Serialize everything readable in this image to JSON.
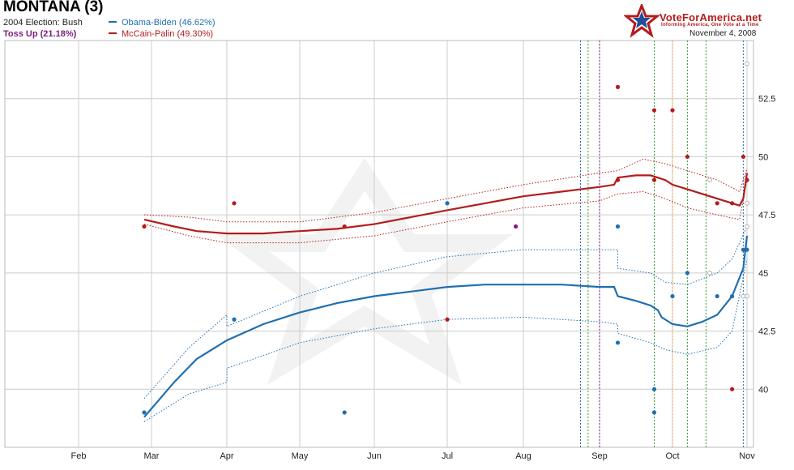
{
  "header": {
    "title": "MONTANA (3)",
    "election_2004": "2004 Election: Bush",
    "status": "Toss Up (21.18%)",
    "brand": "VoteForAmerica.net",
    "tagline": "Informing America, One Vote at a Time",
    "date": "November 4, 2008"
  },
  "colors": {
    "obama": "#1f6fb0",
    "mccain": "#b41c1c",
    "tossup": "#8a1a8a",
    "grid": "#cccccc",
    "orange_line": "#f0a030",
    "green_line": "#2e9a2e"
  },
  "chart_data": {
    "type": "line",
    "x_axis": {
      "labels": [
        "Feb",
        "Mar",
        "Apr",
        "May",
        "Jun",
        "Jul",
        "Aug",
        "Sep",
        "Oct",
        "Nov"
      ]
    },
    "y_axis": {
      "range": [
        37.5,
        55
      ],
      "ticks": [
        40,
        42.5,
        45,
        47.5,
        50,
        52.5
      ]
    },
    "grid": true,
    "legend_position": "top-left",
    "series": [
      {
        "name": "Obama-Biden (46.62%)",
        "color": "#1f6fb0",
        "trend": [
          [
            2.9,
            38.8
          ],
          [
            3.3,
            40.3
          ],
          [
            3.6,
            41.3
          ],
          [
            4.0,
            42.1
          ],
          [
            4.5,
            42.8
          ],
          [
            5.0,
            43.3
          ],
          [
            5.5,
            43.7
          ],
          [
            6.0,
            44.0
          ],
          [
            6.5,
            44.2
          ],
          [
            7.0,
            44.4
          ],
          [
            7.5,
            44.5
          ],
          [
            8.0,
            44.5
          ],
          [
            8.5,
            44.5
          ],
          [
            9.0,
            44.4
          ],
          [
            9.2,
            44.4
          ],
          [
            9.25,
            44.0
          ],
          [
            9.5,
            43.8
          ],
          [
            9.7,
            43.6
          ],
          [
            9.8,
            43.4
          ],
          [
            9.85,
            43.1
          ],
          [
            10.0,
            42.8
          ],
          [
            10.2,
            42.7
          ],
          [
            10.4,
            42.9
          ],
          [
            10.6,
            43.2
          ],
          [
            10.8,
            44.0
          ],
          [
            10.95,
            45.2
          ],
          [
            11.0,
            46.6
          ]
        ],
        "band_upper": [
          [
            2.9,
            39.6
          ],
          [
            3.5,
            41.8
          ],
          [
            4.0,
            43.2
          ],
          [
            4.0,
            42.7
          ],
          [
            5.0,
            44.0
          ],
          [
            6.0,
            45.0
          ],
          [
            7.0,
            45.7
          ],
          [
            8.0,
            46.0
          ],
          [
            9.0,
            46.0
          ],
          [
            9.25,
            46.0
          ],
          [
            9.25,
            45.2
          ],
          [
            9.7,
            45.0
          ],
          [
            9.9,
            44.6
          ],
          [
            10.2,
            44.5
          ],
          [
            10.6,
            45.0
          ],
          [
            10.8,
            45.6
          ],
          [
            11.0,
            47.0
          ]
        ],
        "band_lower": [
          [
            2.9,
            38.6
          ],
          [
            3.5,
            39.8
          ],
          [
            4.0,
            40.3
          ],
          [
            4.0,
            40.9
          ],
          [
            5.0,
            42.0
          ],
          [
            6.0,
            42.6
          ],
          [
            7.0,
            43.0
          ],
          [
            8.0,
            43.1
          ],
          [
            9.0,
            42.9
          ],
          [
            9.25,
            42.8
          ],
          [
            9.25,
            42.4
          ],
          [
            9.7,
            42.0
          ],
          [
            9.9,
            41.7
          ],
          [
            10.2,
            41.5
          ],
          [
            10.6,
            41.8
          ],
          [
            10.8,
            42.5
          ],
          [
            11.0,
            45.6
          ]
        ],
        "polls": [
          [
            2.9,
            39.0
          ],
          [
            4.1,
            43.0
          ],
          [
            5.6,
            39.0
          ],
          [
            7.0,
            48.0
          ],
          [
            9.25,
            47.0
          ],
          [
            9.25,
            42.0
          ],
          [
            9.75,
            40.0
          ],
          [
            9.75,
            39.0
          ],
          [
            10.0,
            44.0
          ],
          [
            10.2,
            45.0
          ],
          [
            10.6,
            44.0
          ],
          [
            10.8,
            44.0
          ],
          [
            10.95,
            46.0
          ],
          [
            11.0,
            46.0
          ]
        ]
      },
      {
        "name": "McCain-Palin (49.30%)",
        "color": "#b41c1c",
        "trend": [
          [
            2.9,
            47.3
          ],
          [
            3.3,
            47.0
          ],
          [
            3.6,
            46.8
          ],
          [
            4.0,
            46.7
          ],
          [
            4.5,
            46.7
          ],
          [
            5.0,
            46.8
          ],
          [
            5.5,
            46.9
          ],
          [
            6.0,
            47.1
          ],
          [
            6.5,
            47.4
          ],
          [
            7.0,
            47.7
          ],
          [
            7.5,
            48.0
          ],
          [
            8.0,
            48.3
          ],
          [
            8.5,
            48.5
          ],
          [
            9.0,
            48.7
          ],
          [
            9.2,
            48.8
          ],
          [
            9.25,
            49.1
          ],
          [
            9.5,
            49.2
          ],
          [
            9.7,
            49.2
          ],
          [
            9.9,
            49.0
          ],
          [
            10.0,
            48.8
          ],
          [
            10.2,
            48.6
          ],
          [
            10.5,
            48.3
          ],
          [
            10.7,
            48.1
          ],
          [
            10.9,
            47.9
          ],
          [
            10.95,
            48.2
          ],
          [
            11.0,
            49.3
          ]
        ],
        "band_upper": [
          [
            2.9,
            47.5
          ],
          [
            3.5,
            47.4
          ],
          [
            4.0,
            47.2
          ],
          [
            5.0,
            47.2
          ],
          [
            6.0,
            47.6
          ],
          [
            7.0,
            48.2
          ],
          [
            8.0,
            48.8
          ],
          [
            9.0,
            49.3
          ],
          [
            9.25,
            49.4
          ],
          [
            9.6,
            49.9
          ],
          [
            9.9,
            49.7
          ],
          [
            10.2,
            49.4
          ],
          [
            10.6,
            49.0
          ],
          [
            10.9,
            48.5
          ],
          [
            11.0,
            49.5
          ]
        ],
        "band_lower": [
          [
            2.9,
            47.1
          ],
          [
            3.5,
            46.6
          ],
          [
            4.0,
            46.3
          ],
          [
            5.0,
            46.3
          ],
          [
            6.0,
            46.6
          ],
          [
            7.0,
            47.2
          ],
          [
            8.0,
            47.8
          ],
          [
            9.0,
            48.1
          ],
          [
            9.25,
            48.4
          ],
          [
            9.6,
            48.5
          ],
          [
            9.9,
            48.2
          ],
          [
            10.2,
            47.8
          ],
          [
            10.6,
            47.5
          ],
          [
            10.9,
            47.3
          ],
          [
            11.0,
            49.0
          ]
        ],
        "polls": [
          [
            2.9,
            47.0
          ],
          [
            4.1,
            48.0
          ],
          [
            5.6,
            47.0
          ],
          [
            7.0,
            43.0
          ],
          [
            9.25,
            53.0
          ],
          [
            9.25,
            49.0
          ],
          [
            9.75,
            52.0
          ],
          [
            9.75,
            49.0
          ],
          [
            10.0,
            52.0
          ],
          [
            10.2,
            50.0
          ],
          [
            10.6,
            48.0
          ],
          [
            10.8,
            48.0
          ],
          [
            10.95,
            50.0
          ],
          [
            11.0,
            49.0
          ],
          [
            10.8,
            40.0
          ]
        ]
      }
    ],
    "tossup_polls": [
      [
        7.9,
        47.0
      ]
    ],
    "open_points": [
      [
        11.0,
        54.0
      ],
      [
        11.0,
        47.0
      ],
      [
        11.0,
        48.0
      ],
      [
        11.0,
        44.0
      ],
      [
        10.95,
        44.0
      ],
      [
        10.5,
        49.0
      ],
      [
        10.5,
        45.0
      ]
    ],
    "event_lines": [
      {
        "x": 8.75,
        "color": "#1f6fb0"
      },
      {
        "x": 8.85,
        "color": "#2e9a2e"
      },
      {
        "x": 9.0,
        "color": "#8a1a8a"
      },
      {
        "x": 9.75,
        "color": "#2e9a2e"
      },
      {
        "x": 10.0,
        "color": "#f0a030"
      },
      {
        "x": 10.2,
        "color": "#2e9a2e"
      },
      {
        "x": 10.45,
        "color": "#2e9a2e"
      },
      {
        "x": 10.95,
        "color": "#1f6fb0"
      }
    ]
  }
}
